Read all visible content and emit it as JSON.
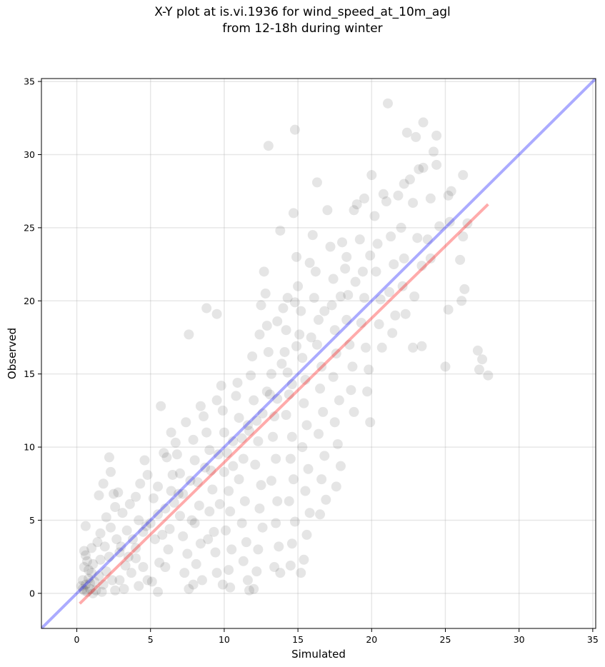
{
  "chart_data": {
    "type": "scatter",
    "title_line1": "X-Y plot at is.vi.1936 for wind_speed_at_10m_agl",
    "title_line2": "from 12-18h during winter",
    "xlabel": "Simulated",
    "ylabel": "Observed",
    "xlim": [
      -2.4,
      35.2
    ],
    "ylim": [
      -2.4,
      35.2
    ],
    "xticks": [
      0,
      5,
      10,
      15,
      20,
      25,
      30,
      35
    ],
    "yticks": [
      0,
      5,
      10,
      15,
      20,
      25,
      30,
      35
    ],
    "grid": true,
    "reference_line": {
      "name": "1:1",
      "color": "#0000ff",
      "x": [
        -2.4,
        35.2
      ],
      "y": [
        -2.4,
        35.2
      ]
    },
    "regression_line": {
      "color": "#ff0000",
      "x": [
        0.2,
        27.9
      ],
      "y": [
        -0.7,
        26.6
      ]
    },
    "point_color": "#000000",
    "point_alpha": 0.1,
    "points": [
      [
        0.5,
        0.2
      ],
      [
        0.6,
        0.6
      ],
      [
        0.8,
        1.0
      ],
      [
        0.4,
        0.9
      ],
      [
        0.9,
        0.3
      ],
      [
        1.0,
        1.4
      ],
      [
        0.7,
        0.1
      ],
      [
        1.2,
        0.8
      ],
      [
        0.3,
        0.5
      ],
      [
        0.5,
        1.8
      ],
      [
        0.6,
        2.6
      ],
      [
        1.1,
        2.0
      ],
      [
        1.5,
        1.2
      ],
      [
        0.8,
        1.6
      ],
      [
        0.9,
        0.7
      ],
      [
        1.3,
        0.2
      ],
      [
        0.4,
        0.3
      ],
      [
        0.7,
        2.2
      ],
      [
        1.6,
        2.3
      ],
      [
        1.8,
        0.6
      ],
      [
        2.0,
        1.5
      ],
      [
        2.2,
        2.5
      ],
      [
        2.4,
        0.9
      ],
      [
        1.9,
        3.2
      ],
      [
        1.0,
        3.1
      ],
      [
        0.5,
        2.9
      ],
      [
        2.2,
        9.3
      ],
      [
        2.3,
        8.3
      ],
      [
        1.8,
        7.5
      ],
      [
        1.5,
        6.7
      ],
      [
        2.5,
        6.8
      ],
      [
        2.8,
        6.9
      ],
      [
        2.6,
        5.9
      ],
      [
        2.0,
        5.2
      ],
      [
        3.1,
        5.5
      ],
      [
        3.4,
        4.3
      ],
      [
        3.5,
        2.5
      ],
      [
        3.7,
        1.4
      ],
      [
        2.9,
        0.9
      ],
      [
        3.2,
        0.3
      ],
      [
        4.2,
        0.5
      ],
      [
        4.8,
        0.9
      ],
      [
        4.5,
        1.8
      ],
      [
        4.0,
        3.1
      ],
      [
        4.5,
        4.2
      ],
      [
        4.2,
        5.0
      ],
      [
        4.0,
        6.6
      ],
      [
        4.3,
        7.5
      ],
      [
        4.8,
        8.1
      ],
      [
        4.6,
        9.1
      ],
      [
        5.2,
        6.5
      ],
      [
        5.5,
        7.3
      ],
      [
        5.0,
        4.8
      ],
      [
        5.3,
        3.7
      ],
      [
        5.6,
        2.1
      ],
      [
        5.1,
        0.8
      ],
      [
        5.5,
        0.1
      ],
      [
        6.0,
        1.8
      ],
      [
        6.2,
        3.0
      ],
      [
        6.3,
        4.4
      ],
      [
        6.0,
        5.8
      ],
      [
        6.4,
        7.0
      ],
      [
        6.5,
        8.1
      ],
      [
        6.1,
        9.3
      ],
      [
        6.7,
        10.3
      ],
      [
        5.7,
        12.8
      ],
      [
        6.8,
        9.5
      ],
      [
        7.0,
        8.2
      ],
      [
        7.2,
        6.8
      ],
      [
        7.0,
        5.3
      ],
      [
        7.2,
        3.9
      ],
      [
        7.5,
        2.7
      ],
      [
        7.3,
        1.4
      ],
      [
        7.6,
        0.3
      ],
      [
        7.6,
        17.7
      ],
      [
        7.9,
        10.5
      ],
      [
        8.0,
        9.1
      ],
      [
        8.2,
        7.6
      ],
      [
        8.3,
        6.0
      ],
      [
        8.0,
        4.8
      ],
      [
        8.4,
        3.4
      ],
      [
        8.1,
        2.0
      ],
      [
        8.5,
        0.9
      ],
      [
        8.8,
        19.5
      ],
      [
        8.6,
        12.1
      ],
      [
        8.8,
        11.0
      ],
      [
        9.0,
        9.8
      ],
      [
        9.1,
        8.4
      ],
      [
        9.2,
        7.1
      ],
      [
        9.0,
        5.6
      ],
      [
        9.3,
        4.2
      ],
      [
        9.4,
        2.8
      ],
      [
        9.5,
        1.4
      ],
      [
        9.5,
        19.1
      ],
      [
        9.8,
        14.2
      ],
      [
        9.9,
        12.5
      ],
      [
        10.0,
        11.0
      ],
      [
        10.2,
        9.6
      ],
      [
        10.0,
        8.3
      ],
      [
        10.3,
        7.0
      ],
      [
        10.4,
        5.6
      ],
      [
        10.1,
        4.3
      ],
      [
        10.5,
        3.0
      ],
      [
        10.3,
        1.6
      ],
      [
        10.4,
        0.4
      ],
      [
        10.8,
        13.5
      ],
      [
        11.0,
        12.0
      ],
      [
        11.2,
        10.6
      ],
      [
        11.3,
        9.2
      ],
      [
        11.0,
        7.8
      ],
      [
        11.4,
        6.3
      ],
      [
        11.2,
        4.8
      ],
      [
        11.5,
        3.5
      ],
      [
        11.3,
        2.2
      ],
      [
        11.6,
        0.9
      ],
      [
        11.8,
        14.9
      ],
      [
        12.0,
        13.2
      ],
      [
        12.2,
        11.8
      ],
      [
        12.3,
        10.4
      ],
      [
        12.1,
        8.8
      ],
      [
        12.5,
        7.4
      ],
      [
        12.4,
        5.8
      ],
      [
        12.6,
        4.5
      ],
      [
        12.3,
        3.0
      ],
      [
        12.2,
        1.5
      ],
      [
        12.0,
        0.3
      ],
      [
        12.5,
        19.7
      ],
      [
        12.7,
        22.0
      ],
      [
        12.9,
        18.3
      ],
      [
        13.0,
        16.5
      ],
      [
        13.2,
        15.0
      ],
      [
        13.1,
        13.6
      ],
      [
        13.4,
        12.1
      ],
      [
        13.3,
        10.7
      ],
      [
        13.5,
        9.2
      ],
      [
        13.2,
        7.7
      ],
      [
        13.6,
        6.3
      ],
      [
        13.5,
        4.8
      ],
      [
        13.7,
        3.2
      ],
      [
        13.4,
        1.8
      ],
      [
        13.0,
        30.6
      ],
      [
        13.8,
        24.8
      ],
      [
        14.0,
        19.5
      ],
      [
        14.2,
        18.0
      ],
      [
        14.1,
        16.5
      ],
      [
        14.3,
        15.1
      ],
      [
        14.4,
        13.6
      ],
      [
        14.2,
        12.2
      ],
      [
        14.6,
        10.7
      ],
      [
        14.5,
        9.2
      ],
      [
        14.7,
        7.8
      ],
      [
        14.4,
        6.3
      ],
      [
        14.8,
        4.9
      ],
      [
        14.6,
        3.4
      ],
      [
        14.5,
        1.9
      ],
      [
        14.8,
        31.7
      ],
      [
        14.7,
        26.0
      ],
      [
        14.9,
        23.0
      ],
      [
        15.0,
        21.0
      ],
      [
        15.2,
        19.3
      ],
      [
        15.1,
        17.7
      ],
      [
        15.3,
        16.1
      ],
      [
        15.5,
        14.6
      ],
      [
        15.4,
        13.0
      ],
      [
        15.6,
        11.5
      ],
      [
        15.3,
        10.0
      ],
      [
        15.7,
        8.5
      ],
      [
        15.5,
        7.0
      ],
      [
        15.8,
        5.5
      ],
      [
        15.6,
        4.0
      ],
      [
        15.4,
        2.3
      ],
      [
        15.2,
        1.4
      ],
      [
        16.0,
        24.5
      ],
      [
        16.2,
        22.0
      ],
      [
        16.1,
        20.2
      ],
      [
        16.4,
        18.7
      ],
      [
        16.3,
        17.0
      ],
      [
        16.6,
        15.5
      ],
      [
        16.5,
        14.0
      ],
      [
        16.7,
        12.4
      ],
      [
        16.4,
        10.9
      ],
      [
        16.8,
        9.4
      ],
      [
        16.6,
        7.8
      ],
      [
        16.9,
        6.4
      ],
      [
        16.5,
        5.4
      ],
      [
        16.3,
        28.1
      ],
      [
        17.0,
        26.2
      ],
      [
        17.2,
        23.7
      ],
      [
        17.4,
        21.5
      ],
      [
        17.3,
        19.7
      ],
      [
        17.5,
        18.0
      ],
      [
        17.6,
        16.4
      ],
      [
        17.4,
        14.8
      ],
      [
        17.8,
        13.2
      ],
      [
        17.5,
        11.7
      ],
      [
        17.7,
        10.2
      ],
      [
        17.9,
        8.7
      ],
      [
        17.6,
        7.3
      ],
      [
        18.0,
        24.0
      ],
      [
        18.2,
        22.2
      ],
      [
        18.4,
        20.4
      ],
      [
        18.3,
        18.7
      ],
      [
        18.5,
        17.0
      ],
      [
        18.7,
        15.5
      ],
      [
        18.6,
        13.9
      ],
      [
        18.8,
        12.4
      ],
      [
        18.3,
        23.0
      ],
      [
        18.8,
        26.2
      ],
      [
        19.0,
        26.6
      ],
      [
        19.2,
        24.2
      ],
      [
        19.4,
        22.0
      ],
      [
        19.5,
        20.2
      ],
      [
        19.3,
        18.5
      ],
      [
        19.6,
        16.8
      ],
      [
        19.8,
        15.3
      ],
      [
        19.7,
        13.8
      ],
      [
        19.9,
        11.7
      ],
      [
        19.5,
        27.0
      ],
      [
        20.0,
        28.6
      ],
      [
        20.2,
        25.8
      ],
      [
        20.4,
        23.9
      ],
      [
        20.3,
        22.0
      ],
      [
        20.6,
        20.1
      ],
      [
        20.5,
        18.4
      ],
      [
        20.7,
        16.8
      ],
      [
        20.8,
        27.3
      ],
      [
        21.0,
        26.8
      ],
      [
        21.1,
        33.5
      ],
      [
        21.3,
        24.4
      ],
      [
        21.5,
        22.5
      ],
      [
        21.2,
        20.6
      ],
      [
        21.6,
        19.0
      ],
      [
        21.4,
        17.8
      ],
      [
        21.8,
        27.2
      ],
      [
        22.0,
        25.0
      ],
      [
        22.2,
        22.9
      ],
      [
        22.1,
        21.0
      ],
      [
        22.3,
        19.1
      ],
      [
        22.2,
        28.0
      ],
      [
        22.4,
        31.5
      ],
      [
        22.6,
        28.3
      ],
      [
        22.8,
        26.7
      ],
      [
        23.0,
        31.2
      ],
      [
        23.2,
        29.0
      ],
      [
        23.1,
        24.3
      ],
      [
        22.9,
        20.3
      ],
      [
        22.8,
        16.8
      ],
      [
        23.4,
        16.9
      ],
      [
        23.5,
        32.2
      ],
      [
        23.5,
        29.1
      ],
      [
        23.8,
        24.2
      ],
      [
        23.4,
        22.4
      ],
      [
        24.0,
        27.0
      ],
      [
        24.2,
        30.2
      ],
      [
        24.4,
        31.3
      ],
      [
        24.4,
        29.3
      ],
      [
        24.6,
        25.1
      ],
      [
        24.0,
        22.9
      ],
      [
        25.0,
        15.5
      ],
      [
        25.2,
        19.4
      ],
      [
        25.3,
        25.4
      ],
      [
        25.4,
        27.5
      ],
      [
        25.2,
        27.2
      ],
      [
        26.0,
        22.8
      ],
      [
        26.2,
        24.4
      ],
      [
        26.2,
        28.6
      ],
      [
        26.3,
        20.8
      ],
      [
        26.1,
        20.0
      ],
      [
        27.2,
        16.6
      ],
      [
        27.5,
        16.0
      ],
      [
        27.3,
        15.3
      ],
      [
        27.9,
        14.9
      ],
      [
        26.5,
        25.3
      ],
      [
        1.4,
        3.5
      ],
      [
        1.6,
        4.1
      ],
      [
        2.3,
        4.5
      ],
      [
        2.7,
        3.7
      ],
      [
        3.0,
        3.2
      ],
      [
        0.6,
        4.6
      ],
      [
        1.1,
        0.0
      ],
      [
        1.7,
        0.1
      ],
      [
        2.6,
        0.2
      ],
      [
        3.3,
        1.9
      ],
      [
        4.0,
        2.4
      ],
      [
        5.8,
        4.0
      ],
      [
        6.6,
        6.2
      ],
      [
        7.8,
        5.0
      ],
      [
        8.9,
        3.7
      ],
      [
        9.7,
        6.1
      ],
      [
        10.6,
        8.7
      ],
      [
        11.7,
        11.1
      ],
      [
        12.9,
        13.8
      ],
      [
        13.9,
        15.7
      ],
      [
        14.9,
        16.9
      ],
      [
        15.9,
        17.5
      ],
      [
        16.8,
        19.3
      ],
      [
        17.9,
        20.3
      ],
      [
        18.9,
        21.3
      ],
      [
        19.9,
        23.1
      ],
      [
        6.9,
        6.8
      ],
      [
        7.7,
        7.7
      ],
      [
        8.7,
        8.6
      ],
      [
        9.6,
        9.5
      ],
      [
        10.6,
        10.4
      ],
      [
        11.6,
        11.5
      ],
      [
        12.6,
        12.3
      ],
      [
        13.6,
        13.3
      ],
      [
        14.6,
        14.3
      ],
      [
        5.5,
        5.4
      ],
      [
        4.7,
        4.6
      ],
      [
        3.8,
        3.7
      ],
      [
        2.9,
        2.8
      ],
      [
        3.6,
        6.1
      ],
      [
        5.9,
        9.6
      ],
      [
        8.4,
        12.8
      ],
      [
        9.5,
        13.2
      ],
      [
        10.9,
        14.4
      ],
      [
        11.9,
        16.2
      ],
      [
        12.4,
        17.7
      ],
      [
        13.6,
        18.6
      ],
      [
        14.8,
        19.9
      ],
      [
        6.4,
        11.0
      ],
      [
        7.4,
        11.7
      ],
      [
        12.8,
        20.5
      ],
      [
        14.3,
        20.2
      ],
      [
        15.8,
        22.6
      ],
      [
        9.9,
        0.6
      ],
      [
        11.7,
        0.2
      ],
      [
        13.8,
        1.4
      ],
      [
        7.9,
        0.6
      ]
    ]
  }
}
